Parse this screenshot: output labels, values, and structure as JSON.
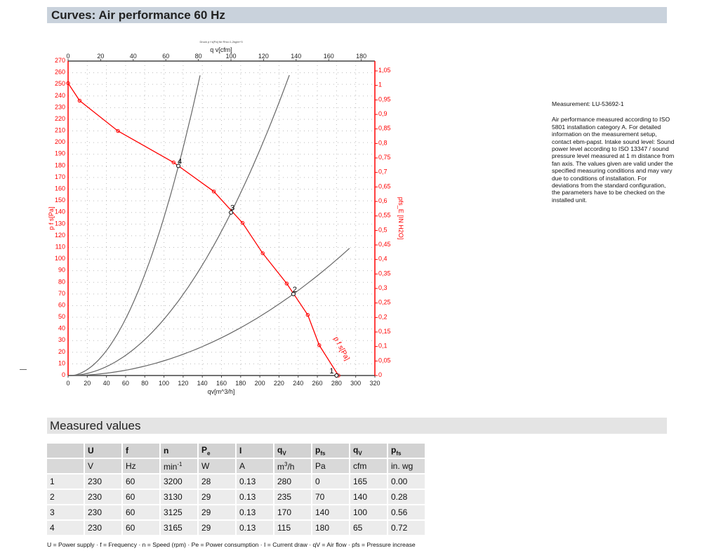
{
  "header": {
    "title": "Curves: Air performance 60 Hz"
  },
  "measurement": {
    "id": "Measurement: LU-53692-1",
    "description": "Air performance measured according to ISO 5801 installation category A. For detailed information on the measurement setup, contact ebm-papst. Intake sound level: Sound power level according to ISO 13347 / sound pressure level measured at 1 m distance from fan axis. The values given are valid under the specified measuring conditions and may vary due to conditions of installation. For deviations from the standard configuration, the parameters have to be checked on the installed unit."
  },
  "measured": {
    "title": "Measured values",
    "head1": [
      "",
      "U",
      "f",
      "n",
      "P",
      "I",
      "q",
      "p",
      "q",
      "p"
    ],
    "head1_sub": [
      "",
      "",
      "",
      "",
      "e",
      "",
      "V",
      "fs",
      "V",
      "fs"
    ],
    "head2": [
      "",
      "V",
      "Hz",
      "min",
      "W",
      "A",
      "m",
      "Pa",
      "cfm",
      "in. wg"
    ],
    "head2_sup": [
      "",
      "",
      "",
      "-1",
      "",
      "",
      "3",
      "",
      "",
      ""
    ],
    "head2_tail": [
      "",
      "",
      "",
      "",
      "",
      "",
      "/h",
      "",
      "",
      ""
    ],
    "rows": [
      [
        "1",
        "230",
        "60",
        "3200",
        "28",
        "0.13",
        "280",
        "0",
        "165",
        "0.00"
      ],
      [
        "2",
        "230",
        "60",
        "3130",
        "29",
        "0.13",
        "235",
        "70",
        "140",
        "0.28"
      ],
      [
        "3",
        "230",
        "60",
        "3125",
        "29",
        "0.13",
        "170",
        "140",
        "100",
        "0.56"
      ],
      [
        "4",
        "230",
        "60",
        "3165",
        "29",
        "0.13",
        "115",
        "180",
        "65",
        "0.72"
      ]
    ],
    "footnote": "U = Power supply · f = Frequency · n = Speed (rpm) · Pe = Power consumption · I = Current draw · qV = Air flow · pfs = Pressure increase"
  },
  "chart_data": {
    "type": "line",
    "title": "Druck p f s[Pa] für Rho=1,2kg/m^3",
    "xlabel": "qv[m^3/h]",
    "xlim": [
      0,
      320
    ],
    "xticks": [
      0,
      20,
      40,
      60,
      80,
      100,
      120,
      140,
      160,
      180,
      200,
      220,
      240,
      260,
      280,
      300,
      320
    ],
    "x2label": "q v[cfm]",
    "x2lim": [
      0,
      188
    ],
    "x2ticks": [
      0,
      20,
      40,
      60,
      80,
      100,
      120,
      140,
      160,
      180
    ],
    "ylabel": "p f s[Pa]",
    "ylim": [
      0,
      270
    ],
    "yticks": [
      0,
      10,
      20,
      30,
      40,
      50,
      60,
      70,
      80,
      90,
      100,
      110,
      120,
      130,
      140,
      150,
      160,
      170,
      180,
      190,
      200,
      210,
      220,
      230,
      240,
      250,
      260,
      270
    ],
    "y2label": "pfs_E [IN H2O]",
    "y2ticks": [
      "0",
      "0,05",
      "0,1",
      "0,15",
      "0,2",
      "0,25",
      "0,3",
      "0,35",
      "0,4",
      "0,45",
      "0,5",
      "0,55",
      "0,6",
      "0,65",
      "0,7",
      "0,75",
      "0,8",
      "0,85",
      "0,9",
      "0,95",
      "1",
      "1,05"
    ],
    "grid": true,
    "fan_curve": {
      "name": "p f s[Pa]",
      "color": "#ff0000",
      "x": [
        0,
        12,
        52,
        110,
        152,
        182,
        203,
        228,
        250,
        262,
        282
      ],
      "y": [
        251,
        236,
        210,
        183,
        158,
        131,
        105,
        79,
        52,
        26,
        0
      ]
    },
    "system_curves": [
      {
        "color": "#666666",
        "k": 0.01361,
        "xmax": 137.7
      },
      {
        "color": "#666666",
        "k": 0.004844,
        "xmax": 230.8
      },
      {
        "color": "#666666",
        "k": 0.001268,
        "xmax": 293.6
      }
    ],
    "operating_points": [
      {
        "label": "1",
        "x": 280,
        "y": 0
      },
      {
        "label": "2",
        "x": 235,
        "y": 70
      },
      {
        "label": "3",
        "x": 170,
        "y": 140
      },
      {
        "label": "4",
        "x": 115,
        "y": 180
      }
    ]
  }
}
